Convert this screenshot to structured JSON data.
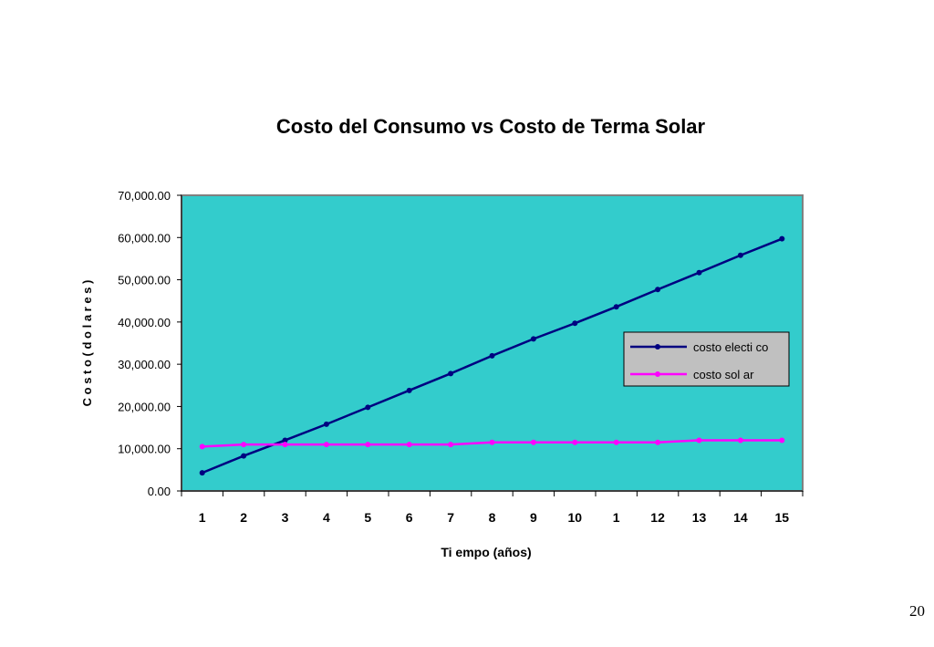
{
  "page": {
    "number": "20"
  },
  "chart_data": {
    "type": "line",
    "title": "Costo del Consumo vs Costo de Terma Solar",
    "xlabel": "Ti empo (años)",
    "ylabel": "C o s t o  ( d o l a r e s )",
    "categories": [
      "1",
      "2",
      "3",
      "4",
      "5",
      "6",
      "7",
      "8",
      "9",
      "10",
      "1",
      "12",
      "13",
      "14",
      "15"
    ],
    "ylim": [
      0,
      70000
    ],
    "yticks": [
      "0.00",
      "10,000.00",
      "20,000.00",
      "30,000.00",
      "40,000.00",
      "50,000.00",
      "60,000.00",
      "70,000.00"
    ],
    "grid": false,
    "legend_position": "right",
    "plot_background": "#33CCCC",
    "series": [
      {
        "name": "costo electi co",
        "color": "#000080",
        "values": [
          4300,
          8300,
          12000,
          15800,
          19800,
          23800,
          27800,
          32000,
          36000,
          39700,
          43600,
          47700,
          51700,
          55800,
          59700
        ]
      },
      {
        "name": "costo sol ar",
        "color": "#FF00FF",
        "values": [
          10500,
          11000,
          11000,
          11000,
          11000,
          11000,
          11000,
          11500,
          11500,
          11500,
          11500,
          11500,
          12000,
          12000,
          12000
        ]
      }
    ]
  }
}
